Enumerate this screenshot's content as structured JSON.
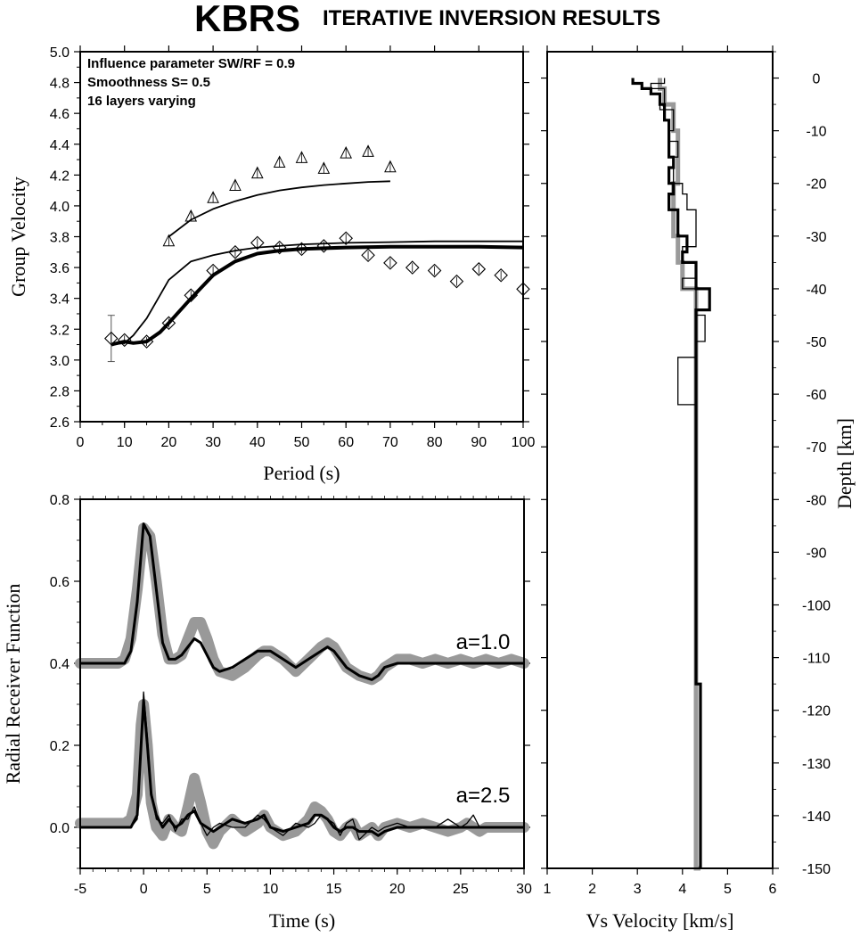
{
  "title": {
    "station": "KBRS",
    "subtitle": "ITERATIVE INVERSION RESULTS"
  },
  "chart_data": [
    {
      "type": "scatter",
      "panel": "dispersion",
      "xlabel": "Period (s)",
      "ylabel": "Group Velocity",
      "xlim": [
        0,
        100
      ],
      "ylim": [
        2.6,
        5.0
      ],
      "xticks": [
        0,
        10,
        20,
        30,
        40,
        50,
        60,
        70,
        80,
        90,
        100
      ],
      "yticks": [
        2.6,
        2.8,
        3.0,
        3.2,
        3.4,
        3.6,
        3.8,
        4.0,
        4.2,
        4.4,
        4.6,
        4.8,
        5.0
      ],
      "annotations": [
        "Influence parameter SW/RF = 0.9",
        "Smoothness S= 0.5",
        "16 layers varying"
      ],
      "observed_triangles": {
        "x": [
          20,
          25,
          30,
          35,
          40,
          45,
          50,
          55,
          60,
          65,
          70
        ],
        "y": [
          3.77,
          3.93,
          4.05,
          4.13,
          4.21,
          4.28,
          4.31,
          4.24,
          4.34,
          4.35,
          4.25
        ]
      },
      "observed_diamonds": {
        "x": [
          7,
          10,
          15,
          20,
          25,
          30,
          35,
          40,
          45,
          50,
          55,
          60,
          65,
          70,
          75,
          80,
          85,
          90,
          95,
          100
        ],
        "y": [
          3.14,
          3.13,
          3.12,
          3.24,
          3.42,
          3.58,
          3.7,
          3.76,
          3.73,
          3.72,
          3.74,
          3.79,
          3.68,
          3.63,
          3.6,
          3.58,
          3.51,
          3.59,
          3.55,
          3.46
        ]
      },
      "errorbar_first": {
        "x": 7,
        "y": 3.14,
        "err": 0.15
      },
      "models": [
        {
          "style": "thin",
          "x": [
            20,
            25,
            30,
            35,
            40,
            45,
            50,
            55,
            60,
            65,
            70
          ],
          "y": [
            3.8,
            3.91,
            3.98,
            4.03,
            4.07,
            4.1,
            4.12,
            4.135,
            4.145,
            4.155,
            4.16
          ]
        },
        {
          "style": "thin",
          "x": [
            7,
            10,
            12,
            15,
            18,
            20,
            25,
            30,
            35,
            40,
            50,
            60,
            70,
            80,
            90,
            100
          ],
          "y": [
            3.1,
            3.11,
            3.16,
            3.27,
            3.42,
            3.52,
            3.64,
            3.68,
            3.71,
            3.73,
            3.75,
            3.76,
            3.765,
            3.77,
            3.77,
            3.77
          ]
        },
        {
          "style": "thick",
          "x": [
            7,
            10,
            12,
            15,
            18,
            20,
            25,
            30,
            35,
            40,
            45,
            50,
            60,
            70,
            80,
            90,
            100
          ],
          "y": [
            3.1,
            3.12,
            3.11,
            3.12,
            3.18,
            3.24,
            3.4,
            3.55,
            3.64,
            3.69,
            3.71,
            3.72,
            3.73,
            3.735,
            3.735,
            3.735,
            3.73
          ]
        }
      ]
    },
    {
      "type": "line",
      "panel": "receiver-function",
      "xlabel": "Time (s)",
      "ylabel": "Radial Receiver Function",
      "xlim": [
        -5,
        30
      ],
      "ylim": [
        -0.1,
        0.8
      ],
      "xticks": [
        -5,
        0,
        5,
        10,
        15,
        20,
        25,
        30
      ],
      "yticks": [
        0.0,
        0.2,
        0.4,
        0.6,
        0.8
      ],
      "series": [
        {
          "name": "a=1.0",
          "x": [
            -5,
            -2,
            -1.5,
            -1,
            -0.5,
            0,
            0.5,
            1,
            1.5,
            2,
            2.5,
            3,
            3.5,
            4,
            4.5,
            5,
            5.5,
            6,
            7,
            8,
            9,
            9.5,
            10,
            11,
            12,
            13,
            14,
            14.5,
            15,
            16,
            17,
            18,
            18.5,
            19,
            20,
            21,
            22,
            23,
            24,
            25,
            26,
            27,
            28,
            29,
            30
          ],
          "observed": [
            0.4,
            0.4,
            0.41,
            0.46,
            0.58,
            0.73,
            0.71,
            0.6,
            0.47,
            0.41,
            0.41,
            0.42,
            0.46,
            0.5,
            0.5,
            0.46,
            0.41,
            0.38,
            0.37,
            0.39,
            0.42,
            0.43,
            0.43,
            0.41,
            0.38,
            0.41,
            0.44,
            0.45,
            0.44,
            0.39,
            0.37,
            0.36,
            0.37,
            0.39,
            0.41,
            0.41,
            0.4,
            0.41,
            0.4,
            0.41,
            0.4,
            0.41,
            0.4,
            0.41,
            0.4
          ],
          "predicted": [
            0.4,
            0.4,
            0.4,
            0.43,
            0.55,
            0.74,
            0.71,
            0.58,
            0.45,
            0.41,
            0.41,
            0.42,
            0.44,
            0.46,
            0.45,
            0.42,
            0.39,
            0.38,
            0.39,
            0.41,
            0.43,
            0.43,
            0.43,
            0.41,
            0.39,
            0.41,
            0.43,
            0.44,
            0.43,
            0.39,
            0.37,
            0.36,
            0.37,
            0.39,
            0.4,
            0.4,
            0.4,
            0.4,
            0.4,
            0.4,
            0.4,
            0.4,
            0.4,
            0.4,
            0.4
          ]
        },
        {
          "name": "a=2.5",
          "x": [
            -5,
            -1.5,
            -1,
            -0.5,
            -0.2,
            0,
            0.3,
            0.6,
            1,
            1.5,
            2,
            2.5,
            3,
            3.5,
            4,
            4.5,
            5,
            5.5,
            6,
            7,
            8,
            9,
            9.5,
            10,
            11,
            12,
            13,
            13.5,
            14,
            14.5,
            15,
            15.5,
            16,
            16.5,
            17,
            18,
            18.5,
            19,
            20,
            21,
            22,
            23,
            24,
            25,
            25.5,
            26,
            26.5,
            27,
            28,
            29,
            30
          ],
          "observed": [
            0.01,
            0.01,
            0.02,
            0.08,
            0.25,
            0.3,
            0.2,
            0.06,
            0.0,
            -0.02,
            0.02,
            0.0,
            -0.01,
            0.05,
            0.12,
            0.06,
            -0.01,
            -0.04,
            -0.01,
            0.02,
            -0.01,
            0.01,
            0.03,
            0.0,
            -0.02,
            -0.01,
            0.02,
            0.05,
            0.04,
            0.02,
            -0.01,
            -0.02,
            0.0,
            0.01,
            -0.02,
            0.0,
            -0.02,
            0.0,
            0.01,
            0.0,
            0.01,
            0.0,
            -0.01,
            0.0,
            0.01,
            0.0,
            -0.01,
            0.0,
            0.0,
            0.0,
            0.0
          ],
          "predicted": [
            0.0,
            0.0,
            0.0,
            0.03,
            0.2,
            0.31,
            0.2,
            0.08,
            0.03,
            0.0,
            0.02,
            0.0,
            0.01,
            0.03,
            0.04,
            0.01,
            0.0,
            -0.01,
            0.0,
            0.02,
            0.01,
            0.02,
            0.03,
            0.0,
            -0.01,
            0.0,
            0.01,
            0.03,
            0.03,
            0.02,
            0.0,
            -0.01,
            0.0,
            0.0,
            -0.01,
            -0.01,
            -0.02,
            -0.01,
            0.0,
            0.0,
            0.0,
            0.0,
            0.0,
            0.0,
            0.0,
            0.0,
            0.0,
            0.0,
            0.0,
            0.0,
            0.0
          ],
          "predicted_alt": [
            0.0,
            0.0,
            0.0,
            0.02,
            0.18,
            0.33,
            0.22,
            0.09,
            0.02,
            0.01,
            0.03,
            -0.01,
            0.02,
            0.02,
            0.05,
            0.01,
            -0.02,
            0.0,
            0.01,
            0.0,
            0.0,
            0.03,
            0.02,
            0.0,
            -0.02,
            0.01,
            0.0,
            0.01,
            0.03,
            0.02,
            0.01,
            -0.02,
            0.01,
            0.02,
            -0.03,
            0.0,
            -0.01,
            0.0,
            0.01,
            0.0,
            0.0,
            0.0,
            0.02,
            0.0,
            0.01,
            0.03,
            0.0,
            0.0,
            0.0,
            0.0,
            0.0
          ]
        }
      ]
    },
    {
      "type": "line",
      "panel": "velocity-model",
      "xlabel": "Vs Velocity [km/s]",
      "ylabel": "Depth [km]",
      "xlim": [
        1,
        6
      ],
      "ylim": [
        -150,
        5
      ],
      "xticks": [
        1,
        2,
        3,
        4,
        5,
        6
      ],
      "yticks": [
        0,
        -10,
        -20,
        -30,
        -40,
        -50,
        -60,
        -70,
        -80,
        -90,
        -100,
        -110,
        -120,
        -130,
        -140,
        -150
      ],
      "models": [
        {
          "style": "gray",
          "v": [
            3.5,
            3.6,
            3.8,
            3.9,
            3.9,
            3.8,
            3.8,
            3.9,
            3.9,
            4.0,
            4.3,
            4.3,
            4.4
          ],
          "z_top": [
            0,
            2,
            5,
            10,
            15,
            20,
            25,
            30,
            33,
            35,
            40,
            80,
            150
          ]
        },
        {
          "style": "thin",
          "v": [
            3.6,
            3.3,
            3.6,
            3.5,
            3.8,
            3.7,
            3.9,
            3.8,
            4.0,
            4.1,
            4.3,
            4.0,
            4.3,
            4.0,
            4.3,
            4.5,
            4.3,
            3.9,
            4.3
          ],
          "z_top": [
            0,
            1,
            2,
            5,
            6,
            10,
            12,
            15,
            20,
            22,
            25,
            32,
            35,
            38,
            40,
            45,
            50,
            53,
            62
          ]
        },
        {
          "style": "thick",
          "v": [
            2.9,
            3.1,
            3.3,
            3.5,
            3.6,
            3.7,
            3.7,
            3.8,
            3.7,
            3.8,
            3.7,
            3.9,
            4.1,
            4.0,
            4.3,
            4.6,
            4.3,
            4.3,
            4.4,
            4.4
          ],
          "z_top": [
            0,
            1,
            2,
            3,
            5,
            8,
            10,
            15,
            17,
            20,
            22,
            25,
            30,
            33,
            35,
            40,
            44,
            80,
            115,
            150
          ]
        }
      ]
    }
  ],
  "labels": {
    "rf_a1": "a=1.0",
    "rf_a25": "a=2.5"
  }
}
